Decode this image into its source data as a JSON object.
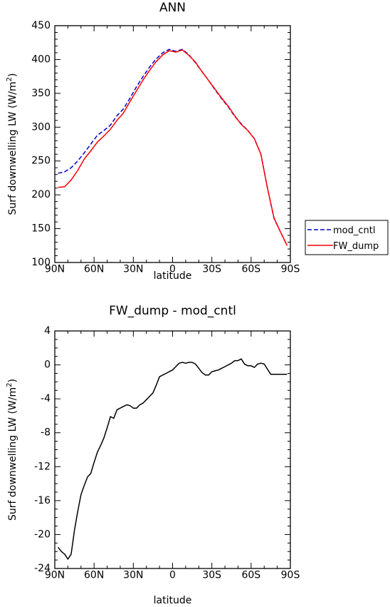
{
  "chart_data": [
    {
      "type": "line",
      "title": "ANN",
      "xlabel": "latitude",
      "ylabel": "Surf downwelling LW (W/m²)",
      "xlim": [
        -90,
        90
      ],
      "ylim": [
        100,
        450
      ],
      "x_ticks": [
        -90,
        -60,
        -30,
        0,
        30,
        60,
        90
      ],
      "x_tick_labels": [
        "90N",
        "60N",
        "30N",
        "0",
        "30S",
        "60S",
        "90S"
      ],
      "y_ticks": [
        100,
        150,
        200,
        250,
        300,
        350,
        400,
        450
      ],
      "y_tick_labels": [
        "100",
        "150",
        "200",
        "250",
        "300",
        "350",
        "400",
        "450"
      ],
      "legend_position": "right",
      "series": [
        {
          "name": "mod_cntl",
          "color": "#0000cc",
          "style": "dashed",
          "x": [
            -87.5,
            -82.5,
            -77.5,
            -72.5,
            -67.5,
            -62.5,
            -57.5,
            -52.5,
            -47.5,
            -42.5,
            -37.5,
            -32.5,
            -27.5,
            -22.5,
            -17.5,
            -12.5,
            -7.5,
            -2.5,
            2.5,
            7.5,
            12.5,
            17.5,
            22.5,
            27.5,
            32.5,
            37.5,
            42.5,
            47.5,
            52.5,
            57.5,
            62.5,
            67.5,
            72.5,
            77.5,
            82.5,
            87.5
          ],
          "y": [
            232,
            234,
            240,
            250,
            262,
            275,
            288,
            295,
            303,
            317,
            327,
            343,
            360,
            375,
            389,
            401,
            410,
            415,
            412,
            415,
            407,
            395,
            382,
            369,
            355,
            342,
            330,
            316,
            305,
            295,
            283,
            260,
            210,
            165,
            145,
            125
          ]
        },
        {
          "name": "FW_dump",
          "color": "#ff0000",
          "style": "solid",
          "x": [
            -87.5,
            -82.5,
            -77.5,
            -72.5,
            -67.5,
            -62.5,
            -57.5,
            -52.5,
            -47.5,
            -42.5,
            -37.5,
            -32.5,
            -27.5,
            -22.5,
            -17.5,
            -12.5,
            -7.5,
            -2.5,
            2.5,
            7.5,
            12.5,
            17.5,
            22.5,
            27.5,
            32.5,
            37.5,
            42.5,
            47.5,
            52.5,
            57.5,
            62.5,
            67.5,
            72.5,
            77.5,
            82.5,
            87.5
          ],
          "y": [
            211,
            212,
            222,
            236,
            253,
            265,
            278,
            287,
            297,
            310,
            321,
            338,
            354,
            370,
            384,
            397,
            407,
            413,
            411,
            414,
            406,
            396,
            382,
            369,
            356,
            343,
            331,
            317,
            304,
            295,
            283,
            260,
            210,
            166,
            145,
            125
          ]
        }
      ]
    },
    {
      "type": "line",
      "title": "FW_dump - mod_cntl",
      "xlabel": "latitude",
      "ylabel": "Surf downwelling LW (W/m²)",
      "xlim": [
        -90,
        90
      ],
      "ylim": [
        -24,
        4
      ],
      "x_ticks": [
        -90,
        -60,
        -30,
        0,
        30,
        60,
        90
      ],
      "x_tick_labels": [
        "90N",
        "60N",
        "30N",
        "0",
        "30S",
        "60S",
        "90S"
      ],
      "y_ticks": [
        -24,
        -20,
        -16,
        -12,
        -8,
        -4,
        0,
        4
      ],
      "y_tick_labels": [
        "-24",
        "-20",
        "-16",
        "-12",
        "-8",
        "-4",
        "0",
        "4"
      ],
      "series": [
        {
          "color": "#000000",
          "style": "solid",
          "x": [
            -87.5,
            -85,
            -82.5,
            -80,
            -77.5,
            -75,
            -72.5,
            -70,
            -67.5,
            -65,
            -62.5,
            -60,
            -57.5,
            -55,
            -52.5,
            -50,
            -47.5,
            -45,
            -42.5,
            -40,
            -37.5,
            -35,
            -32.5,
            -30,
            -27.5,
            -25,
            -22.5,
            -20,
            -17.5,
            -15,
            -12.5,
            -10,
            -7.5,
            -5,
            -2.5,
            0,
            2.5,
            5,
            7.5,
            10,
            12.5,
            15,
            17.5,
            20,
            22.5,
            25,
            27.5,
            30,
            32.5,
            35,
            37.5,
            40,
            42.5,
            45,
            47.5,
            50,
            52.5,
            55,
            57.5,
            60,
            62.5,
            65,
            67.5,
            70,
            72.5,
            75,
            77.5,
            80,
            82.5,
            85,
            87.5
          ],
          "y": [
            -21.5,
            -22,
            -22.3,
            -22.9,
            -22.3,
            -19.5,
            -17.3,
            -15.3,
            -14.2,
            -13.2,
            -12.8,
            -11.5,
            -10.3,
            -9.5,
            -8.6,
            -7.4,
            -6.1,
            -6.3,
            -5.3,
            -5.1,
            -4.9,
            -4.7,
            -4.8,
            -5.1,
            -5.1,
            -4.7,
            -4.5,
            -4.1,
            -3.7,
            -3.3,
            -2.4,
            -1.4,
            -1.2,
            -1.0,
            -0.8,
            -0.6,
            -0.2,
            0.2,
            0.3,
            0.2,
            0.3,
            0.3,
            0.1,
            -0.4,
            -0.9,
            -1.2,
            -1.2,
            -0.8,
            -0.7,
            -0.6,
            -0.4,
            -0.2,
            0,
            0.2,
            0.5,
            0.5,
            0.7,
            0.1,
            -0.1,
            -0.1,
            -0.3,
            0.1,
            0.2,
            0.1,
            -0.5,
            -1.1,
            -1.1,
            -1.1,
            -1.1,
            -1.1,
            -1.1
          ]
        }
      ]
    }
  ]
}
